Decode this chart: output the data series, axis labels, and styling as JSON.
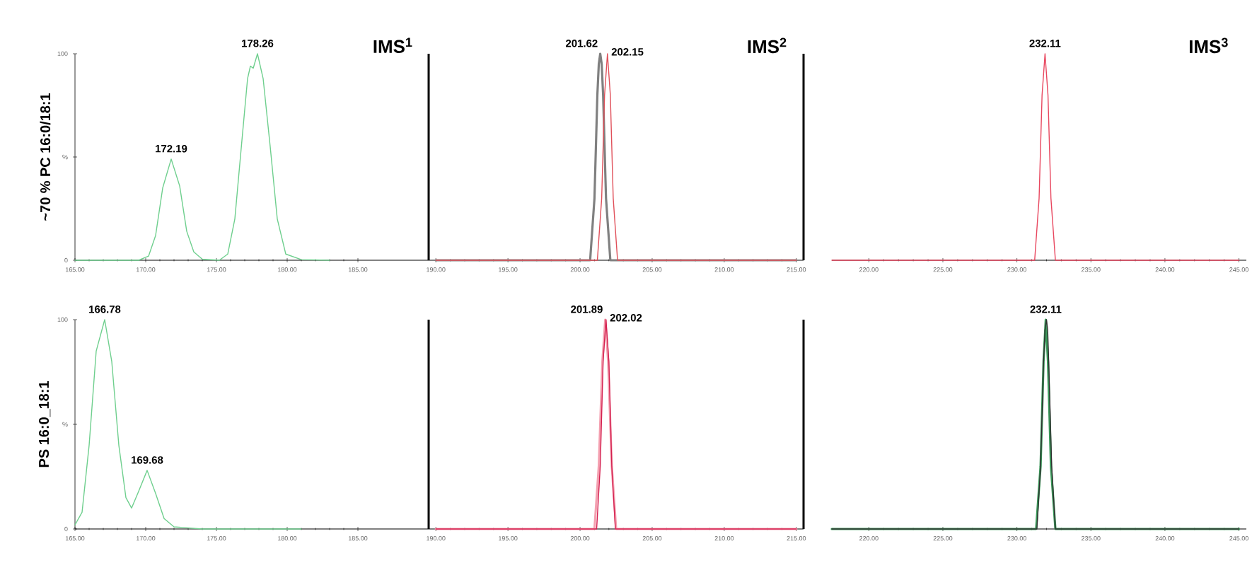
{
  "chart_data": [
    {
      "type": "line",
      "title": "IMS$^{1}$",
      "ylabel": "~70 % PC 16:0/18:1",
      "xlim": [
        165,
        190
      ],
      "ylim": [
        0,
        100
      ],
      "xticks": [
        {
          "value": 165,
          "label": "165.00"
        },
        {
          "value": 170,
          "label": "170.00"
        },
        {
          "value": 175,
          "label": "175.00"
        },
        {
          "value": 180,
          "label": "180.00"
        },
        {
          "value": 185,
          "label": "185.00"
        }
      ],
      "yticks": [
        0,
        {
          "value": 50,
          "label": "%"
        },
        100
      ],
      "series": [
        {
          "color": "#6fcf8e",
          "x": [
            165,
            169.5,
            170.2,
            170.7,
            171.2,
            171.8,
            172.4,
            172.9,
            173.4,
            174,
            175.2,
            175.8,
            176.3,
            176.8,
            177.2,
            177.4,
            177.6,
            177.9,
            178.3,
            178.8,
            179.3,
            179.9,
            181,
            183
          ],
          "values": [
            0,
            0,
            2,
            12,
            35,
            49,
            36,
            14,
            4,
            0.5,
            0,
            3,
            20,
            58,
            88,
            94,
            93,
            100,
            88,
            55,
            20,
            3,
            0.3,
            0
          ]
        }
      ],
      "annotations": [
        {
          "text": "172.19",
          "x": 171.8,
          "y": 49
        },
        {
          "text": "178.26",
          "x": 177.9,
          "y": 100
        }
      ]
    },
    {
      "type": "line",
      "title": "IMS$^{2}$",
      "xlim": [
        189.5,
        215.5
      ],
      "ylim": [
        0,
        100
      ],
      "tick_labels": "x",
      "xticks": [
        {
          "value": 190,
          "label": "190.00"
        },
        {
          "value": 195,
          "label": "195.00"
        },
        {
          "value": 200,
          "label": "200.00"
        },
        {
          "value": 205,
          "label": "205.00"
        },
        {
          "value": 210,
          "label": "210.00"
        },
        {
          "value": 215,
          "label": "215.00"
        }
      ],
      "series": [
        {
          "color": "#808080",
          "x": [
            190,
            200.7,
            201.0,
            201.2,
            201.3,
            201.4,
            201.5,
            201.6,
            201.8,
            202.1,
            215
          ],
          "values": [
            0,
            0,
            30,
            80,
            95,
            100,
            95,
            80,
            30,
            0,
            0
          ]
        },
        {
          "color": "#e0505a",
          "x": [
            190,
            201.2,
            201.5,
            201.7,
            201.9,
            202.1,
            202.3,
            202.6,
            215
          ],
          "values": [
            0,
            0,
            30,
            80,
            100,
            80,
            30,
            0,
            0
          ]
        }
      ],
      "annotations": [
        {
          "text": "201.62",
          "x": 201.4,
          "y": 100
        },
        {
          "text": "202.15",
          "x": 201.9,
          "y": 100
        }
      ]
    },
    {
      "type": "line",
      "title": "IMS$^{3}$",
      "xlim": [
        217.5,
        245.5
      ],
      "ylim": [
        0,
        100
      ],
      "tick_labels": "x",
      "xticks": [
        {
          "value": 220,
          "label": "220.00"
        },
        {
          "value": 225,
          "label": "225.00"
        },
        {
          "value": 230,
          "label": "230.00"
        },
        {
          "value": 235,
          "label": "235.00"
        },
        {
          "value": 240,
          "label": "240.00"
        },
        {
          "value": 245,
          "label": "245.00"
        }
      ],
      "series": [
        {
          "color": "#e8475f",
          "x": [
            217.5,
            231.2,
            231.5,
            231.7,
            231.9,
            232.1,
            232.3,
            232.6,
            245
          ],
          "values": [
            0,
            0,
            30,
            80,
            100,
            80,
            30,
            0,
            0
          ]
        }
      ],
      "annotations": [
        {
          "text": "232.11",
          "x": 231.9,
          "y": 100
        }
      ]
    },
    {
      "type": "line",
      "ylabel": "PS 16:0_18:1",
      "xlim": [
        165,
        190
      ],
      "ylim": [
        0,
        100
      ],
      "xticks": [
        {
          "value": 165,
          "label": "165.00"
        },
        {
          "value": 170,
          "label": "170.00"
        },
        {
          "value": 175,
          "label": "175.00"
        },
        {
          "value": 180,
          "label": "180.00"
        },
        {
          "value": 185,
          "label": "185.00"
        }
      ],
      "yticks": [
        0,
        {
          "value": 50,
          "label": "%"
        },
        100
      ],
      "series": [
        {
          "color": "#6fcf8e",
          "x": [
            165,
            165.5,
            166,
            166.5,
            167.1,
            167.6,
            168.1,
            168.6,
            169,
            169.5,
            170.1,
            170.7,
            171.3,
            172,
            174,
            181
          ],
          "values": [
            2,
            8,
            40,
            85,
            100,
            80,
            40,
            15,
            10,
            18,
            28,
            17,
            5,
            1,
            0,
            0
          ]
        }
      ],
      "annotations": [
        {
          "text": "166.78",
          "x": 167.1,
          "y": 100
        },
        {
          "text": "169.68",
          "x": 170.1,
          "y": 28
        }
      ]
    },
    {
      "type": "line",
      "xlim": [
        189.5,
        215.5
      ],
      "ylim": [
        0,
        100
      ],
      "tick_labels": "x",
      "xticks": [
        {
          "value": 190,
          "label": "190.00"
        },
        {
          "value": 195,
          "label": "195.00"
        },
        {
          "value": 200,
          "label": "200.00"
        },
        {
          "value": 205,
          "label": "205.00"
        },
        {
          "value": 210,
          "label": "210.00"
        },
        {
          "value": 215,
          "label": "215.00"
        }
      ],
      "series": [
        {
          "color": "#f4a0b0",
          "x": [
            190,
            201.0,
            201.3,
            201.55,
            201.75,
            201.95,
            202.2,
            202.5,
            215
          ],
          "values": [
            0,
            0,
            30,
            80,
            100,
            80,
            30,
            0,
            0
          ]
        },
        {
          "color": "#d42050",
          "x": [
            190,
            201.15,
            201.4,
            201.6,
            201.8,
            202.0,
            202.2,
            202.45,
            215
          ],
          "values": [
            0,
            0,
            30,
            80,
            100,
            80,
            30,
            0,
            0
          ]
        }
      ],
      "annotations": [
        {
          "text": "201.89",
          "x": 201.75,
          "y": 100
        },
        {
          "text": "202.02",
          "x": 201.8,
          "y": 100
        }
      ]
    },
    {
      "type": "line",
      "xlim": [
        217.5,
        245.5
      ],
      "ylim": [
        0,
        100
      ],
      "tick_labels": "x",
      "xticks": [
        {
          "value": 220,
          "label": "220.00"
        },
        {
          "value": 225,
          "label": "225.00"
        },
        {
          "value": 230,
          "label": "230.00"
        },
        {
          "value": 235,
          "label": "235.00"
        },
        {
          "value": 240,
          "label": "240.00"
        },
        {
          "value": 245,
          "label": "245.00"
        }
      ],
      "series": [
        {
          "color": "#3a9a5a",
          "x": [
            217.5,
            231.3,
            231.6,
            231.8,
            231.95,
            232.1,
            232.3,
            232.6,
            245
          ],
          "values": [
            0,
            0,
            30,
            80,
            100,
            80,
            30,
            0,
            0
          ]
        },
        {
          "color": "#303030",
          "x": [
            217.5,
            231.35,
            231.6,
            231.8,
            231.9,
            232.0,
            232.08,
            232.15,
            232.35,
            232.6,
            245
          ],
          "values": [
            0,
            0,
            30,
            80,
            95,
            100,
            95,
            80,
            30,
            0,
            0
          ]
        }
      ],
      "annotations": [
        {
          "text": "232.11",
          "x": 231.95,
          "y": 100
        }
      ]
    }
  ]
}
